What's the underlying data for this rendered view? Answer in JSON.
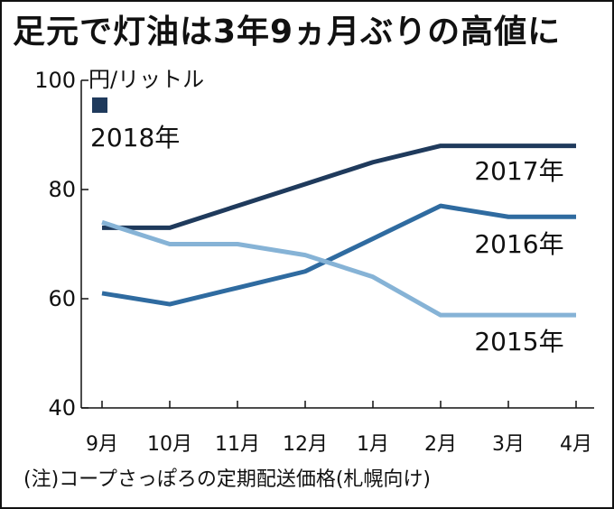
{
  "title": "足元で灯油は3年9ヵ月ぶりの高値に",
  "note": "(注)コープさっぽろの定期配送価格(札幌向け)",
  "colors": {
    "s2017": "#1f3a5c",
    "s2016": "#2f6ba0",
    "s2015": "#86b3d6",
    "s2018": "#1f3a5c"
  },
  "chart_data": {
    "type": "line",
    "title": "足元で灯油は3年9ヵ月ぶりの高値に",
    "ylabel": "円/リットル",
    "xlabel": "",
    "ylim": [
      40,
      100
    ],
    "yticks": [
      40,
      60,
      80,
      100
    ],
    "categories": [
      "9月",
      "10月",
      "11月",
      "12月",
      "1月",
      "2月",
      "3月",
      "4月"
    ],
    "legend": "2018年",
    "series": [
      {
        "name": "2017年",
        "values": [
          73,
          73,
          77,
          81,
          85,
          88,
          88,
          88
        ]
      },
      {
        "name": "2016年",
        "values": [
          61,
          59,
          62,
          65,
          71,
          77,
          75,
          75
        ]
      },
      {
        "name": "2015年",
        "values": [
          74,
          70,
          70,
          68,
          64,
          57,
          57,
          57
        ]
      }
    ]
  }
}
